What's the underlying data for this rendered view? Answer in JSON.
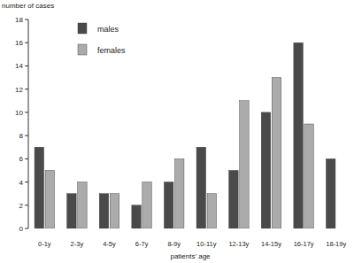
{
  "chart_data": {
    "type": "bar",
    "y_label": "number of cases",
    "x_label": "patients' age",
    "categories": [
      "0-1y",
      "2-3y",
      "4-5y",
      "6-7y",
      "8-9y",
      "10-11y",
      "12-13y",
      "14-15y",
      "16-17y",
      "18-19y"
    ],
    "series": [
      {
        "name": "males",
        "color": "#4a4a4a",
        "values": [
          7,
          3,
          3,
          2,
          4,
          7,
          5,
          10,
          16,
          6
        ]
      },
      {
        "name": "females",
        "color": "#ababab",
        "values": [
          5,
          4,
          3,
          4,
          6,
          3,
          11,
          13,
          9,
          0
        ]
      }
    ],
    "ylim": [
      0,
      18
    ],
    "yticks": [
      0,
      2,
      4,
      6,
      8,
      10,
      12,
      14,
      16,
      18
    ],
    "grid": false,
    "legend": "top-left"
  }
}
